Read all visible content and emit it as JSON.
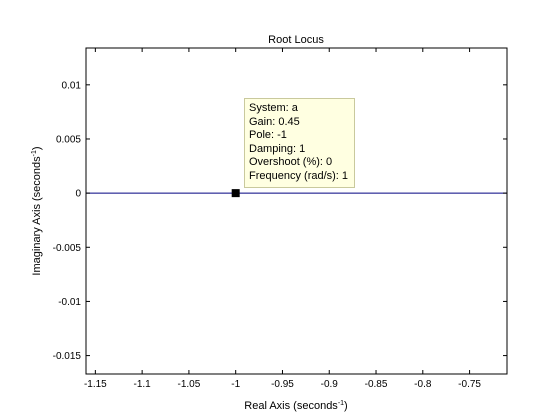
{
  "chart_data": {
    "type": "line",
    "title": "Root Locus",
    "xlabel_prefix": "Real Axis (seconds",
    "xlabel_sup": "-1",
    "xlabel_suffix": ")",
    "ylabel_prefix": "Imaginary Axis (seconds",
    "ylabel_sup": "-1",
    "ylabel_suffix": ")",
    "xlim": [
      -1.16,
      -0.71
    ],
    "ylim": [
      -0.0167,
      0.0134
    ],
    "xticks": [
      -1.15,
      -1.1,
      -1.05,
      -1,
      -0.95,
      -0.9,
      -0.85,
      -0.8,
      -0.75
    ],
    "xtick_labels": [
      "-1.15",
      "-1.1",
      "-1.05",
      "-1",
      "-0.95",
      "-0.9",
      "-0.85",
      "-0.8",
      "-0.75"
    ],
    "yticks": [
      0.01,
      0.005,
      0,
      -0.005,
      -0.01,
      -0.015
    ],
    "ytick_labels": [
      "0.01",
      "0.005",
      "0",
      "-0.005",
      "-0.01",
      "-0.015"
    ],
    "grid": false,
    "series": [
      {
        "name": "a",
        "x": [
          -1.16,
          -0.71
        ],
        "y": [
          0,
          0
        ],
        "color": "#000080"
      }
    ],
    "marker": {
      "x": -1,
      "y": 0,
      "color": "#000000"
    },
    "datatip": [
      "System: a",
      "Gain: 0.45",
      "Pole: -1",
      "Damping: 1",
      "Overshoot (%): 0",
      "Frequency (rad/s): 1"
    ]
  }
}
